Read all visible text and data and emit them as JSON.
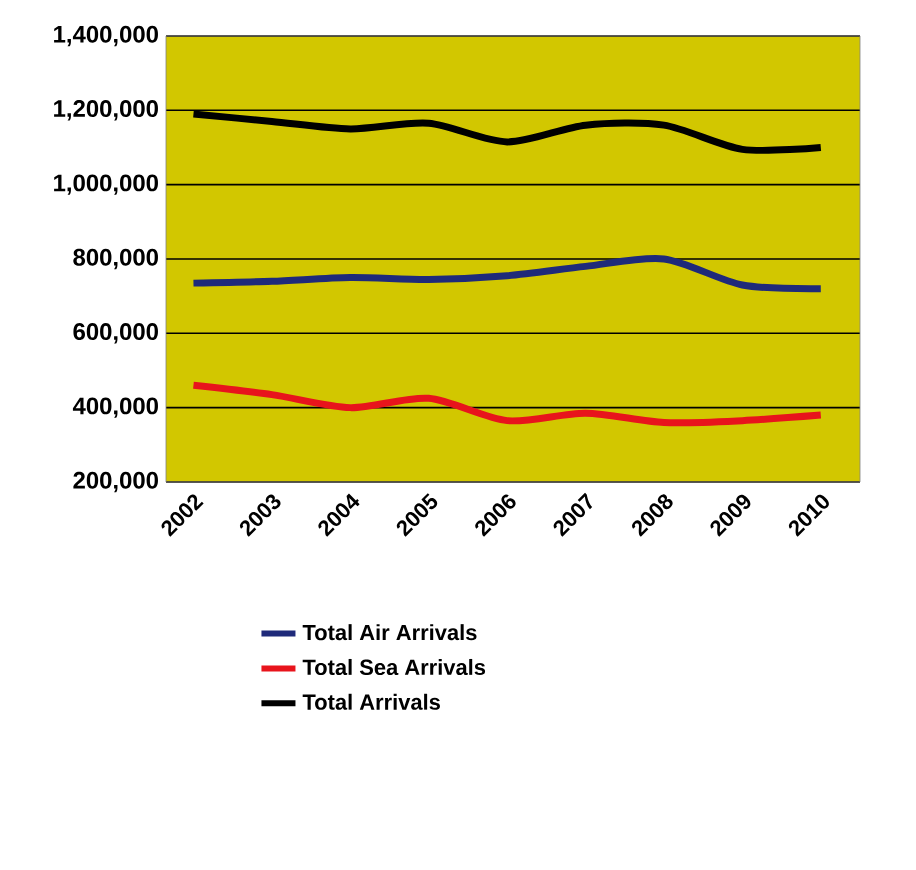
{
  "chart_data": {
    "type": "line",
    "categories": [
      "2002",
      "2003",
      "2004",
      "2005",
      "2006",
      "2007",
      "2008",
      "2009",
      "2010"
    ],
    "series": [
      {
        "name": "Total Air Arrivals",
        "color": "#1f2a7a",
        "values": [
          735000,
          740000,
          750000,
          745000,
          755000,
          780000,
          800000,
          730000,
          720000
        ]
      },
      {
        "name": "Total Sea Arrivals",
        "color": "#e8141c",
        "values": [
          460000,
          435000,
          400000,
          425000,
          365000,
          385000,
          360000,
          365000,
          380000
        ]
      },
      {
        "name": "Total Arrivals",
        "color": "#000000",
        "values": [
          1190000,
          1170000,
          1150000,
          1165000,
          1115000,
          1160000,
          1160000,
          1095000,
          1100000
        ]
      }
    ],
    "ylim": [
      200000,
      1400000
    ],
    "yticks": [
      {
        "value": 200000,
        "label": "200,000"
      },
      {
        "value": 400000,
        "label": "400,000"
      },
      {
        "value": 600000,
        "label": "600,000"
      },
      {
        "value": 800000,
        "label": "800,000"
      },
      {
        "value": 1000000,
        "label": "1,000,000"
      },
      {
        "value": 1200000,
        "label": "1,200,000"
      },
      {
        "value": 1400000,
        "label": "1,400,000"
      }
    ],
    "grid": "y",
    "legend": "bottom",
    "marker": "none",
    "line_style": "solid"
  }
}
